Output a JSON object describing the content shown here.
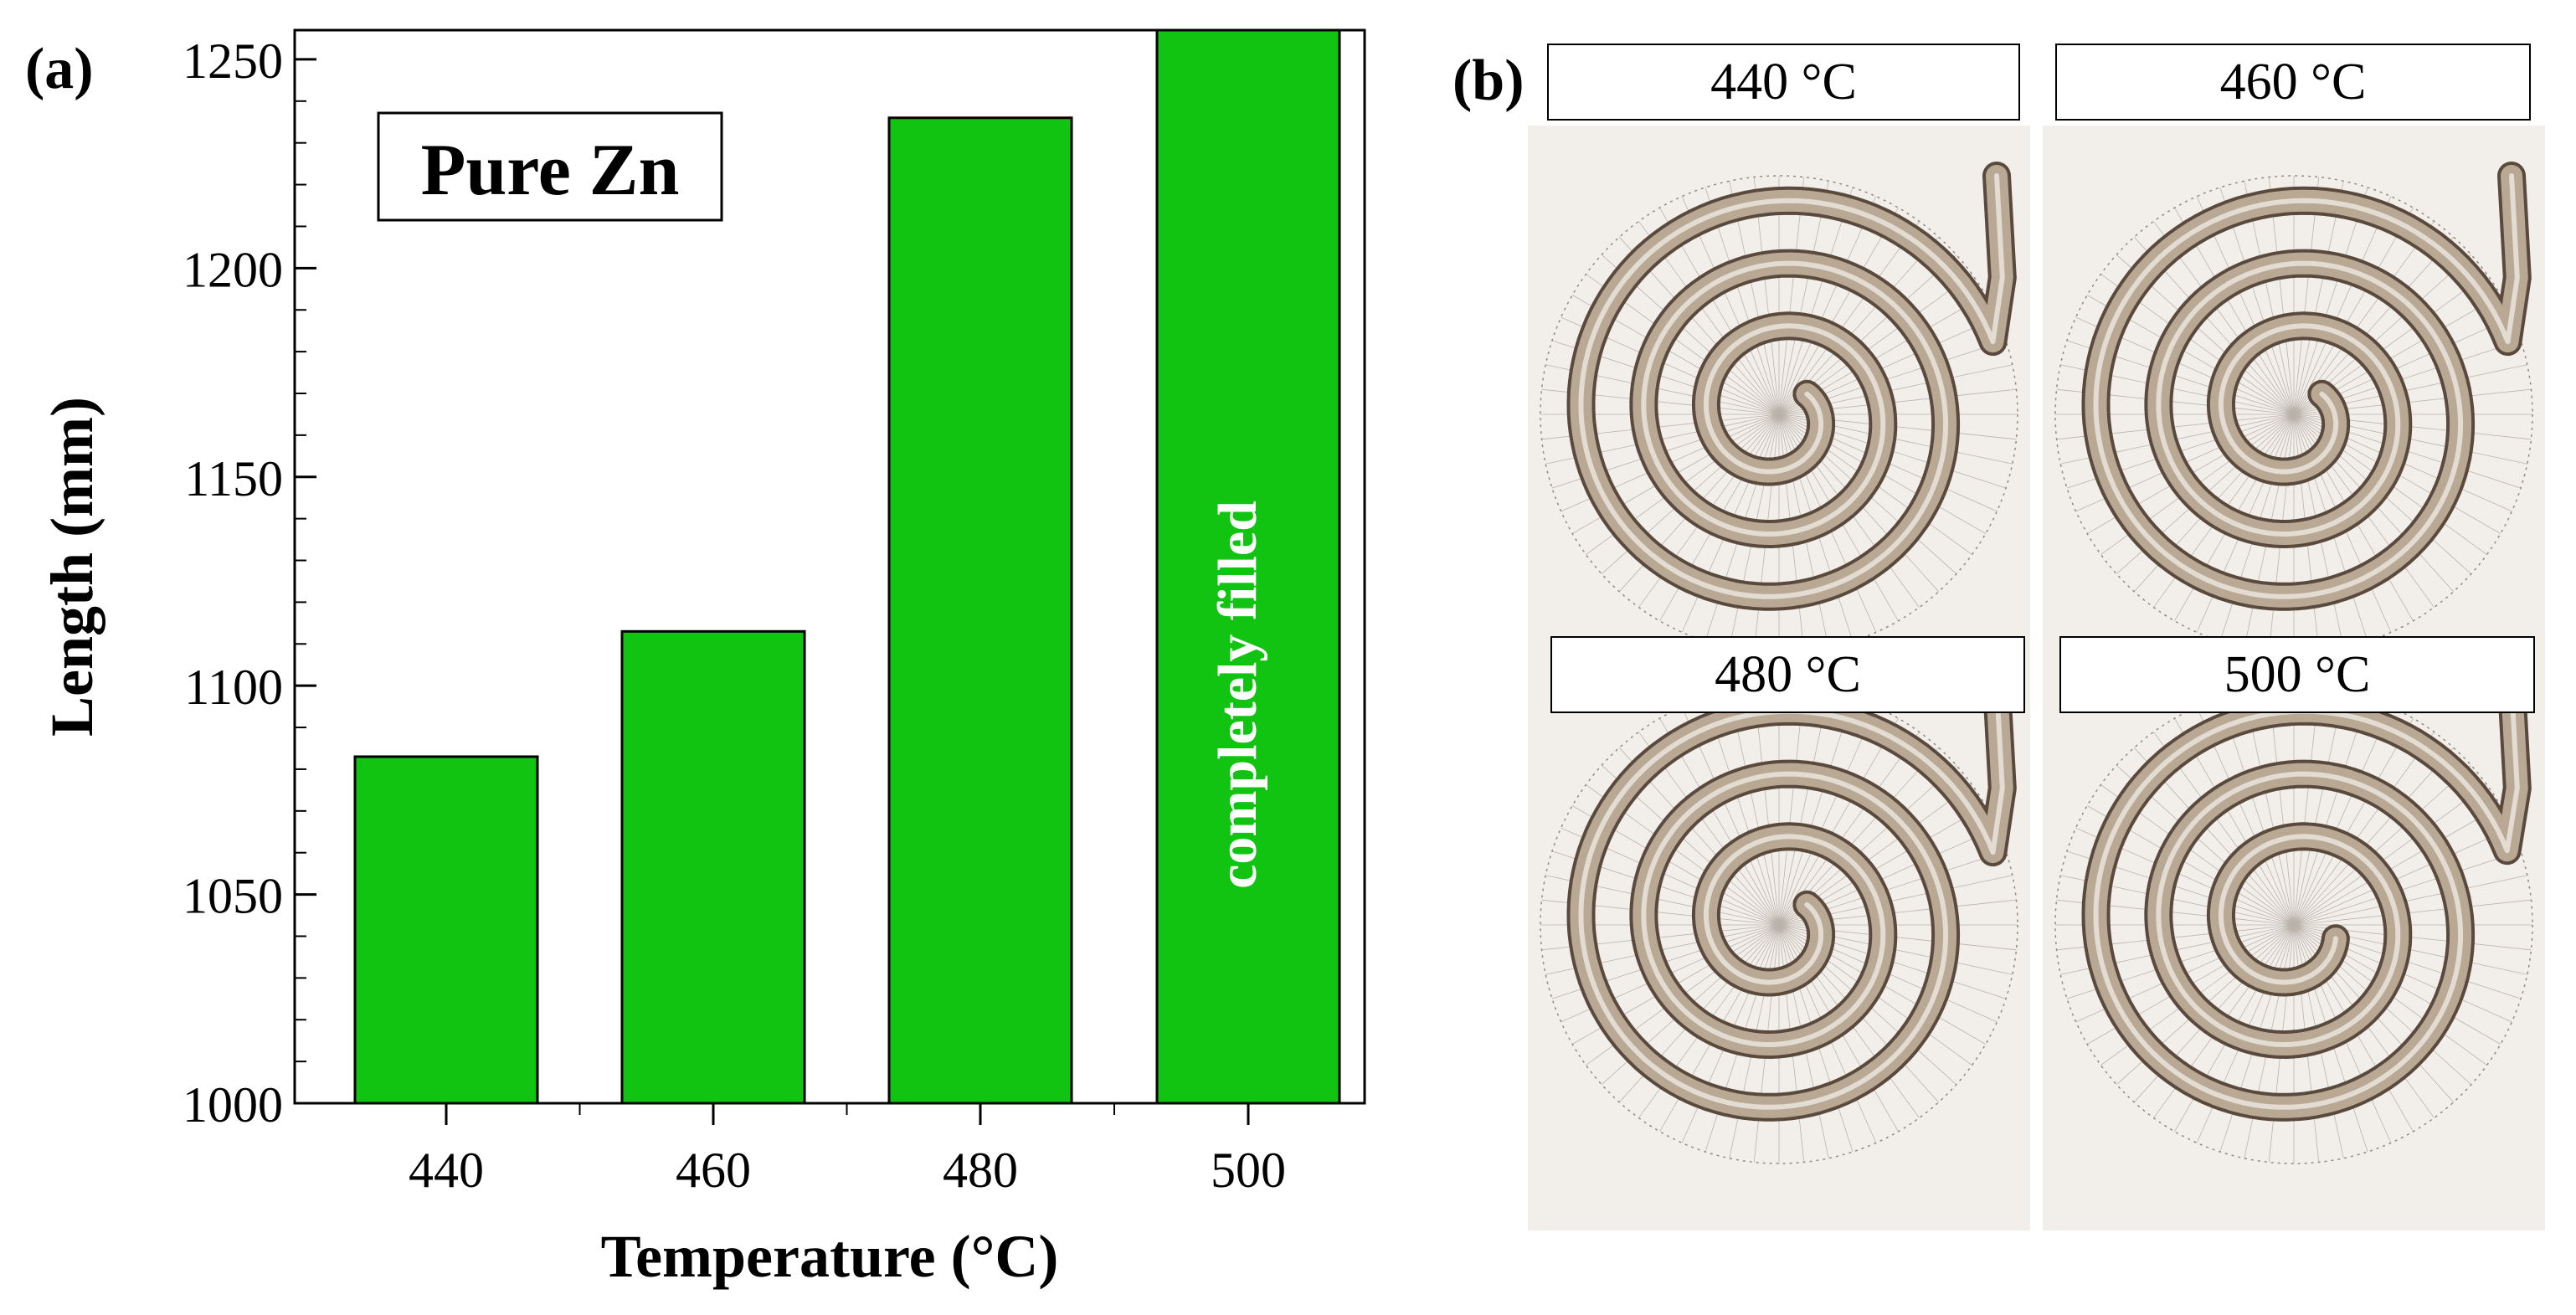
{
  "panel_a": {
    "label": "(a)"
  },
  "panel_b": {
    "label": "(b)",
    "photos": [
      {
        "temperature_label": "440 °C"
      },
      {
        "temperature_label": "460 °C"
      },
      {
        "temperature_label": "480 °C"
      },
      {
        "temperature_label": "500 °C"
      }
    ]
  },
  "chart_data": {
    "type": "bar",
    "categories": [
      "440",
      "460",
      "480",
      "500"
    ],
    "values": [
      1083,
      1113,
      1236,
      1257
    ],
    "xlabel": "Temperature (°C)",
    "ylabel": "Length (mm)",
    "ylim": [
      1000,
      1257
    ],
    "yticks": [
      "1000",
      "1050",
      "1100",
      "1150",
      "1200",
      "1250"
    ],
    "legend_box": "Pure Zn",
    "annotation": "completely filled",
    "bar_color": "#11c411",
    "grid": false
  }
}
